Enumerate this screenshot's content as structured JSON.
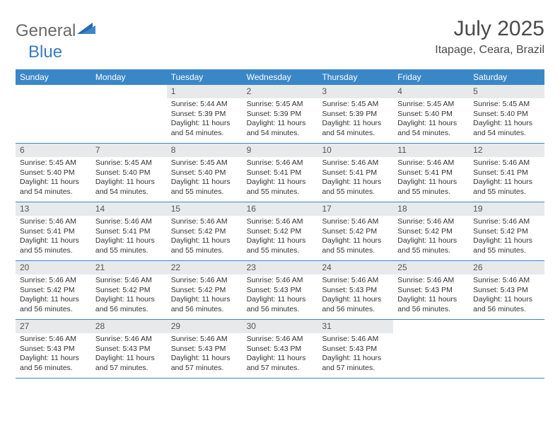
{
  "brand": {
    "part1": "General",
    "part2": "Blue"
  },
  "title": "July 2025",
  "subtitle": "Itapage, Ceara, Brazil",
  "colors": {
    "header_bar": "#3a87c8",
    "daynum_bg": "#e7e9eb",
    "text": "#333333",
    "brand_gray": "#6a6a6a",
    "brand_blue": "#3a7cc4"
  },
  "dow": [
    "Sunday",
    "Monday",
    "Tuesday",
    "Wednesday",
    "Thursday",
    "Friday",
    "Saturday"
  ],
  "weeks": [
    [
      null,
      null,
      {
        "n": "1",
        "sr": "5:44 AM",
        "ss": "5:39 PM",
        "dl": "11 hours and 54 minutes."
      },
      {
        "n": "2",
        "sr": "5:45 AM",
        "ss": "5:39 PM",
        "dl": "11 hours and 54 minutes."
      },
      {
        "n": "3",
        "sr": "5:45 AM",
        "ss": "5:39 PM",
        "dl": "11 hours and 54 minutes."
      },
      {
        "n": "4",
        "sr": "5:45 AM",
        "ss": "5:40 PM",
        "dl": "11 hours and 54 minutes."
      },
      {
        "n": "5",
        "sr": "5:45 AM",
        "ss": "5:40 PM",
        "dl": "11 hours and 54 minutes."
      }
    ],
    [
      {
        "n": "6",
        "sr": "5:45 AM",
        "ss": "5:40 PM",
        "dl": "11 hours and 54 minutes."
      },
      {
        "n": "7",
        "sr": "5:45 AM",
        "ss": "5:40 PM",
        "dl": "11 hours and 54 minutes."
      },
      {
        "n": "8",
        "sr": "5:45 AM",
        "ss": "5:40 PM",
        "dl": "11 hours and 55 minutes."
      },
      {
        "n": "9",
        "sr": "5:46 AM",
        "ss": "5:41 PM",
        "dl": "11 hours and 55 minutes."
      },
      {
        "n": "10",
        "sr": "5:46 AM",
        "ss": "5:41 PM",
        "dl": "11 hours and 55 minutes."
      },
      {
        "n": "11",
        "sr": "5:46 AM",
        "ss": "5:41 PM",
        "dl": "11 hours and 55 minutes."
      },
      {
        "n": "12",
        "sr": "5:46 AM",
        "ss": "5:41 PM",
        "dl": "11 hours and 55 minutes."
      }
    ],
    [
      {
        "n": "13",
        "sr": "5:46 AM",
        "ss": "5:41 PM",
        "dl": "11 hours and 55 minutes."
      },
      {
        "n": "14",
        "sr": "5:46 AM",
        "ss": "5:41 PM",
        "dl": "11 hours and 55 minutes."
      },
      {
        "n": "15",
        "sr": "5:46 AM",
        "ss": "5:42 PM",
        "dl": "11 hours and 55 minutes."
      },
      {
        "n": "16",
        "sr": "5:46 AM",
        "ss": "5:42 PM",
        "dl": "11 hours and 55 minutes."
      },
      {
        "n": "17",
        "sr": "5:46 AM",
        "ss": "5:42 PM",
        "dl": "11 hours and 55 minutes."
      },
      {
        "n": "18",
        "sr": "5:46 AM",
        "ss": "5:42 PM",
        "dl": "11 hours and 55 minutes."
      },
      {
        "n": "19",
        "sr": "5:46 AM",
        "ss": "5:42 PM",
        "dl": "11 hours and 55 minutes."
      }
    ],
    [
      {
        "n": "20",
        "sr": "5:46 AM",
        "ss": "5:42 PM",
        "dl": "11 hours and 56 minutes."
      },
      {
        "n": "21",
        "sr": "5:46 AM",
        "ss": "5:42 PM",
        "dl": "11 hours and 56 minutes."
      },
      {
        "n": "22",
        "sr": "5:46 AM",
        "ss": "5:42 PM",
        "dl": "11 hours and 56 minutes."
      },
      {
        "n": "23",
        "sr": "5:46 AM",
        "ss": "5:43 PM",
        "dl": "11 hours and 56 minutes."
      },
      {
        "n": "24",
        "sr": "5:46 AM",
        "ss": "5:43 PM",
        "dl": "11 hours and 56 minutes."
      },
      {
        "n": "25",
        "sr": "5:46 AM",
        "ss": "5:43 PM",
        "dl": "11 hours and 56 minutes."
      },
      {
        "n": "26",
        "sr": "5:46 AM",
        "ss": "5:43 PM",
        "dl": "11 hours and 56 minutes."
      }
    ],
    [
      {
        "n": "27",
        "sr": "5:46 AM",
        "ss": "5:43 PM",
        "dl": "11 hours and 56 minutes."
      },
      {
        "n": "28",
        "sr": "5:46 AM",
        "ss": "5:43 PM",
        "dl": "11 hours and 57 minutes."
      },
      {
        "n": "29",
        "sr": "5:46 AM",
        "ss": "5:43 PM",
        "dl": "11 hours and 57 minutes."
      },
      {
        "n": "30",
        "sr": "5:46 AM",
        "ss": "5:43 PM",
        "dl": "11 hours and 57 minutes."
      },
      {
        "n": "31",
        "sr": "5:46 AM",
        "ss": "5:43 PM",
        "dl": "11 hours and 57 minutes."
      },
      null,
      null
    ]
  ],
  "labels": {
    "sunrise": "Sunrise:",
    "sunset": "Sunset:",
    "daylight": "Daylight:"
  }
}
